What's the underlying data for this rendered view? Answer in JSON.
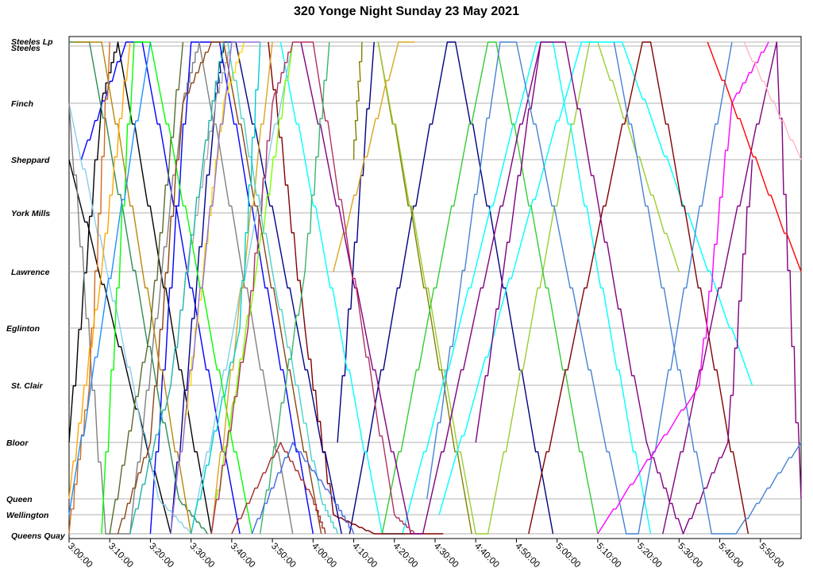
{
  "chart_data": {
    "type": "line",
    "title": "320 Yonge Night Sunday 23 May 2021",
    "xlabel": "",
    "ylabel": "",
    "x_unit": "time of day",
    "xlim": [
      "3:00:00",
      "6:00:00"
    ],
    "x_ticks": [
      "3:00:00",
      "3:10:00",
      "3:20:00",
      "3:30:00",
      "3:40:00",
      "3:50:00",
      "4:00:00",
      "4:10:00",
      "4:20:00",
      "4:30:00",
      "4:40:00",
      "4:50:00",
      "5:00:00",
      "5:10:00",
      "5:20:00",
      "5:30:00",
      "5:40:00",
      "5:50:00"
    ],
    "y_stops": [
      "Steeles Lp",
      "Steeles",
      "Finch",
      "Sheppard",
      "York Mills",
      "Lawrence",
      "Eglinton",
      "St. Clair",
      "Bloor",
      "Queen",
      "Wellington",
      "Queens Quay"
    ],
    "grid": true,
    "legend": "none",
    "series": [
      {
        "color": "#000080",
        "points": [
          [
            "4:09:00",
            "Queens Quay"
          ],
          [
            "4:33:00",
            "Steeles Lp"
          ],
          [
            "4:35:00",
            "Steeles Lp"
          ],
          [
            "4:59:00",
            "Queens Quay"
          ]
        ]
      },
      {
        "color": "#000080",
        "points": [
          [
            "4:06:00",
            "Bloor"
          ],
          [
            "4:15:00",
            "Steeles Lp"
          ]
        ]
      },
      {
        "color": "#808000",
        "points": [
          [
            "4:16:00",
            "Steeles Lp"
          ],
          [
            "4:39:00",
            "Queens Quay"
          ]
        ]
      },
      {
        "color": "#808000",
        "points": [
          [
            "4:10:00",
            "Sheppard"
          ],
          [
            "4:12:00",
            "Steeles Lp"
          ]
        ]
      },
      {
        "color": "#9ACD32",
        "points": [
          [
            "4:16:00",
            "Steeles Lp"
          ],
          [
            "4:40:00",
            "Queens Quay"
          ],
          [
            "4:43:00",
            "Queens Quay"
          ],
          [
            "5:08:00",
            "Steeles Lp"
          ],
          [
            "5:10:00",
            "Steeles Lp"
          ],
          [
            "5:30:00",
            "Lawrence"
          ]
        ]
      },
      {
        "color": "#DAA520",
        "points": [
          [
            "4:05:00",
            "Lawrence"
          ],
          [
            "4:21:00",
            "Steeles Lp"
          ],
          [
            "4:25:00",
            "Steeles Lp"
          ]
        ]
      },
      {
        "color": "#00FFFF",
        "points": [
          [
            "3:52:00",
            "Steeles Lp"
          ],
          [
            "4:17:00",
            "Queens Quay"
          ],
          [
            "4:22:00",
            "Queens Quay"
          ],
          [
            "4:55:00",
            "Steeles Lp"
          ],
          [
            "4:59:00",
            "Steeles Lp"
          ],
          [
            "5:23:00",
            "Queens Quay"
          ]
        ]
      },
      {
        "color": "#00FFFF",
        "points": [
          [
            "4:31:00",
            "Wellington"
          ],
          [
            "5:06:00",
            "Steeles Lp"
          ],
          [
            "5:16:00",
            "Steeles Lp"
          ],
          [
            "5:48:00",
            "St. Clair"
          ]
        ]
      },
      {
        "color": "#32CD32",
        "points": [
          [
            "4:17:00",
            "Queens Quay"
          ],
          [
            "4:43:00",
            "Steeles Lp"
          ],
          [
            "4:45:00",
            "Steeles Lp"
          ],
          [
            "5:10:00",
            "Queens Quay"
          ]
        ]
      },
      {
        "color": "#800000",
        "points": [
          [
            "3:49:00",
            "Steeles Lp"
          ],
          [
            "3:58:00",
            "Eglinton"
          ],
          [
            "4:05:00",
            "Wellington"
          ],
          [
            "4:15:00",
            "Queens Quay"
          ],
          [
            "4:28:00",
            "Queens Quay"
          ],
          [
            "4:32:00",
            "Queens Quay"
          ]
        ]
      },
      {
        "color": "#800000",
        "points": [
          [
            "4:53:00",
            "Queens Quay"
          ],
          [
            "5:21:00",
            "Steeles Lp"
          ],
          [
            "5:23:00",
            "Steeles Lp"
          ],
          [
            "5:47:00",
            "Queens Quay"
          ]
        ]
      },
      {
        "color": "#800080",
        "points": [
          [
            "3:57:00",
            "Steeles Lp"
          ],
          [
            "4:24:00",
            "Queens Quay"
          ],
          [
            "4:27:00",
            "Queens Quay"
          ],
          [
            "4:56:00",
            "Steeles Lp"
          ],
          [
            "5:02:00",
            "Steeles Lp"
          ],
          [
            "5:22:00",
            "Bloor"
          ],
          [
            "5:31:00",
            "Queens Quay"
          ],
          [
            "5:42:00",
            "Bloor"
          ],
          [
            "5:48:00",
            "Sheppard"
          ]
        ]
      },
      {
        "color": "#800080",
        "points": [
          [
            "4:40:00",
            "Bloor"
          ],
          [
            "4:56:00",
            "Steeles Lp"
          ]
        ]
      },
      {
        "color": "#800080",
        "points": [
          [
            "5:26:00",
            "Queens Quay"
          ],
          [
            "5:54:00",
            "Steeles Lp"
          ],
          [
            "6:00:00",
            "Queen"
          ]
        ]
      },
      {
        "color": "#4682D4",
        "points": [
          [
            "4:28:00",
            "Queen"
          ],
          [
            "4:46:00",
            "Steeles Lp"
          ],
          [
            "4:50:00",
            "Steeles Lp"
          ],
          [
            "5:17:00",
            "Queens Quay"
          ],
          [
            "5:20:00",
            "Queens Quay"
          ],
          [
            "5:43:00",
            "Steeles Lp"
          ]
        ]
      },
      {
        "color": "#4682D4",
        "points": [
          [
            "5:14:00",
            "Steeles Lp"
          ],
          [
            "5:38:00",
            "Queens Quay"
          ],
          [
            "5:44:00",
            "Queens Quay"
          ],
          [
            "6:00:00",
            "Bloor"
          ]
        ]
      },
      {
        "color": "#FF00FF",
        "points": [
          [
            "5:10:00",
            "Queens Quay"
          ],
          [
            "5:35:00",
            "St. Clair"
          ],
          [
            "5:43:00",
            "Finch"
          ],
          [
            "5:52:00",
            "Steeles Lp"
          ]
        ]
      },
      {
        "color": "#FF0000",
        "points": [
          [
            "5:37:00",
            "Steeles Lp"
          ],
          [
            "6:00:00",
            "Lawrence"
          ]
        ]
      },
      {
        "color": "#FFB6C1",
        "points": [
          [
            "5:46:00",
            "Steeles Lp"
          ],
          [
            "6:00:00",
            "Sheppard"
          ]
        ]
      },
      {
        "color": "#000000",
        "points": [
          [
            "3:00:00",
            "Sheppard"
          ],
          [
            "3:25:00",
            "Queens Quay"
          ]
        ]
      },
      {
        "color": "#000000",
        "points": [
          [
            "3:00:00",
            "Bloor"
          ],
          [
            "3:08:00",
            "Finch"
          ],
          [
            "3:12:00",
            "Steeles Lp"
          ],
          [
            "3:35:00",
            "Queens Quay"
          ]
        ]
      },
      {
        "color": "#0000FF",
        "points": [
          [
            "3:03:00",
            "Sheppard"
          ],
          [
            "3:14:00",
            "Steeles Lp"
          ],
          [
            "3:18:00",
            "Steeles Lp"
          ],
          [
            "3:42:00",
            "Queens Quay"
          ]
        ]
      },
      {
        "color": "#0000FF",
        "points": [
          [
            "3:20:00",
            "Queens Quay"
          ],
          [
            "3:30:00",
            "Steeles Lp"
          ],
          [
            "3:37:00",
            "Steeles Lp"
          ],
          [
            "4:00:00",
            "Queens Quay"
          ]
        ]
      },
      {
        "color": "#00008B",
        "points": [
          [
            "3:25:00",
            "Queens Quay"
          ],
          [
            "3:36:00",
            "Finch"
          ],
          [
            "3:38:00",
            "Steeles Lp"
          ],
          [
            "3:41:00",
            "Steeles Lp"
          ],
          [
            "4:07:00",
            "Queens Quay"
          ]
        ]
      },
      {
        "color": "#87CEEB",
        "points": [
          [
            "3:00:00",
            "Finch"
          ],
          [
            "3:22:00",
            "Queen"
          ],
          [
            "3:30:00",
            "Queens Quay"
          ],
          [
            "3:55:00",
            "Steeles Lp"
          ]
        ]
      },
      {
        "color": "#808080",
        "points": [
          [
            "3:00:00",
            "Finch"
          ],
          [
            "3:09:00",
            "Queens Quay"
          ],
          [
            "3:15:00",
            "Queens Quay"
          ],
          [
            "3:28:00",
            "Finch"
          ],
          [
            "3:32:00",
            "Steeles Lp"
          ],
          [
            "3:55:00",
            "Queens Quay"
          ]
        ]
      },
      {
        "color": "#A9A9A9",
        "points": [
          [
            "3:29:00",
            "Lawrence"
          ],
          [
            "3:36:00",
            "Finch"
          ],
          [
            "3:40:00",
            "Steeles Lp"
          ]
        ]
      },
      {
        "color": "#2E8B57",
        "points": [
          [
            "3:00:00",
            "Steeles Lp"
          ],
          [
            "3:05:00",
            "Steeles Lp"
          ],
          [
            "3:27:00",
            "Queen"
          ],
          [
            "3:34:00",
            "Queens Quay"
          ]
        ]
      },
      {
        "color": "#00FF00",
        "points": [
          [
            "3:08:00",
            "Queens Quay"
          ],
          [
            "3:16:00",
            "Steeles Lp"
          ],
          [
            "3:20:00",
            "Steeles Lp"
          ],
          [
            "3:45:00",
            "Queens Quay"
          ]
        ]
      },
      {
        "color": "#7FFF00",
        "points": [
          [
            "3:35:00",
            "Queens Quay"
          ],
          [
            "3:46:00",
            "Lawrence"
          ],
          [
            "3:55:00",
            "Steeles Lp"
          ]
        ]
      },
      {
        "color": "#D2691E",
        "points": [
          [
            "3:00:00",
            "Queens Quay"
          ],
          [
            "3:05:00",
            "St. Clair"
          ],
          [
            "3:10:00",
            "Steeles Lp"
          ]
        ]
      },
      {
        "color": "#8B4513",
        "points": [
          [
            "3:12:00",
            "Queens Quay"
          ],
          [
            "3:20:00",
            "Bloor"
          ],
          [
            "3:28:00",
            "Finch"
          ],
          [
            "3:35:00",
            "Steeles Lp"
          ],
          [
            "3:38:00",
            "Steeles Lp"
          ],
          [
            "4:02:00",
            "Queens Quay"
          ]
        ]
      },
      {
        "color": "#B8860B",
        "points": [
          [
            "3:01:00",
            "Steeles Lp"
          ],
          [
            "3:08:00",
            "Steeles Lp"
          ],
          [
            "3:30:00",
            "Queens Quay"
          ]
        ]
      },
      {
        "color": "#DAA520",
        "points": [
          [
            "3:35:00",
            "Queens Quay"
          ],
          [
            "3:50:00",
            "Steeles Lp"
          ]
        ]
      },
      {
        "color": "#FFA500",
        "points": [
          [
            "3:00:00",
            "Queen"
          ],
          [
            "3:08:00",
            "Lawrence"
          ],
          [
            "3:15:00",
            "Steeles Lp"
          ]
        ]
      },
      {
        "color": "#FFD700",
        "points": [
          [
            "3:28:00",
            "Bloor"
          ],
          [
            "3:33:00",
            "Lawrence"
          ],
          [
            "3:38:00",
            "Finch"
          ],
          [
            "3:43:00",
            "Steeles Lp"
          ]
        ]
      },
      {
        "color": "#B03060",
        "points": [
          [
            "3:35:00",
            "Queens Quay"
          ],
          [
            "3:44:00",
            "Eglinton"
          ],
          [
            "3:50:00",
            "Finch"
          ],
          [
            "3:55:00",
            "Steeles Lp"
          ],
          [
            "4:00:00",
            "Steeles Lp"
          ],
          [
            "4:20:00",
            "Wellington"
          ],
          [
            "4:25:00",
            "Queens Quay"
          ]
        ]
      },
      {
        "color": "#48D1CC",
        "points": [
          [
            "3:39:00",
            "Steeles Lp"
          ],
          [
            "3:50:00",
            "Lawrence"
          ],
          [
            "4:02:00",
            "Queen"
          ],
          [
            "4:06:00",
            "Queens Quay"
          ]
        ]
      },
      {
        "color": "#00CED1",
        "points": [
          [
            "3:30:00",
            "Queens Quay"
          ],
          [
            "3:42:00",
            "Eglinton"
          ],
          [
            "3:47:00",
            "Steeles Lp"
          ]
        ]
      },
      {
        "color": "#9370DB",
        "points": [
          [
            "3:25:00",
            "Queens Quay"
          ],
          [
            "3:40:00",
            "Steeles Lp"
          ],
          [
            "3:47:00",
            "Steeles Lp"
          ]
        ]
      },
      {
        "color": "#1E90FF",
        "points": [
          [
            "3:00:00",
            "Wellington"
          ],
          [
            "3:20:00",
            "Steeles Lp"
          ]
        ]
      },
      {
        "color": "#556B2F",
        "points": [
          [
            "3:10:00",
            "Queens Quay"
          ],
          [
            "3:20:00",
            "Eglinton"
          ],
          [
            "3:28:00",
            "Steeles Lp"
          ]
        ]
      },
      {
        "color": "#3CB371",
        "points": [
          [
            "3:47:00",
            "Queens Quay"
          ],
          [
            "3:58:00",
            "Lawrence"
          ],
          [
            "4:04:00",
            "Steeles Lp"
          ]
        ]
      },
      {
        "color": "#A52A2A",
        "points": [
          [
            "3:40:00",
            "Queens Quay"
          ],
          [
            "3:52:00",
            "Bloor"
          ],
          [
            "4:00:00",
            "Queen"
          ],
          [
            "4:03:00",
            "Queens Quay"
          ]
        ]
      },
      {
        "color": "#4169E1",
        "points": [
          [
            "3:45:00",
            "Queens Quay"
          ],
          [
            "3:55:00",
            "Bloor"
          ],
          [
            "4:05:00",
            "Queen"
          ],
          [
            "4:10:00",
            "Queens Quay"
          ]
        ]
      },
      {
        "color": "#20B2AA",
        "points": [
          [
            "3:15:00",
            "Queens Quay"
          ],
          [
            "3:25:00",
            "St. Clair"
          ],
          [
            "3:33:00",
            "Sheppard"
          ],
          [
            "3:38:00",
            "Steeles Lp"
          ]
        ]
      }
    ]
  }
}
